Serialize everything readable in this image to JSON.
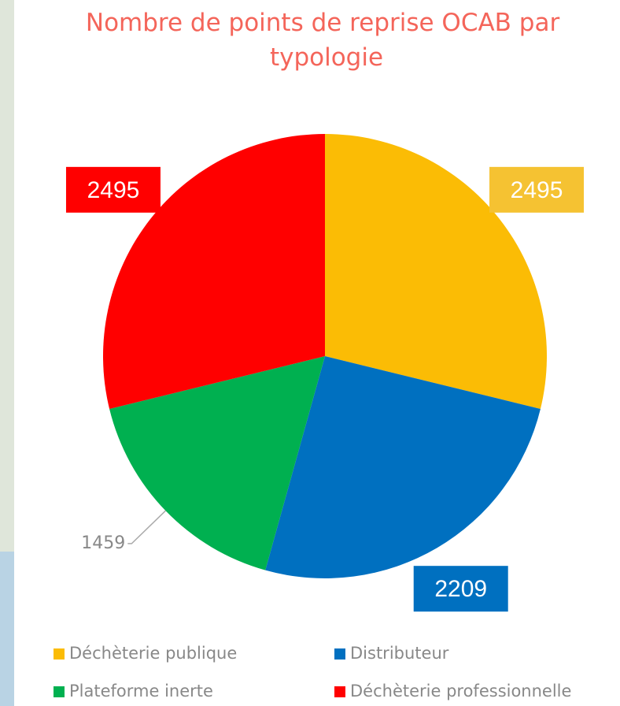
{
  "chart_data": {
    "type": "pie",
    "title": "Nombre de points de reprise OCAB par typologie",
    "categories": [
      "Déchèterie publique",
      "Distributeur",
      "Plateforme inerte",
      "Déchèterie professionnelle"
    ],
    "values": [
      2495,
      2209,
      1459,
      2495
    ],
    "colors": [
      "#fbbc05",
      "#0070c0",
      "#00b050",
      "#ff0000"
    ],
    "label_colors": [
      "#f5c232",
      "#0070c0",
      null,
      "#ff0000"
    ],
    "legend": "bottom"
  }
}
